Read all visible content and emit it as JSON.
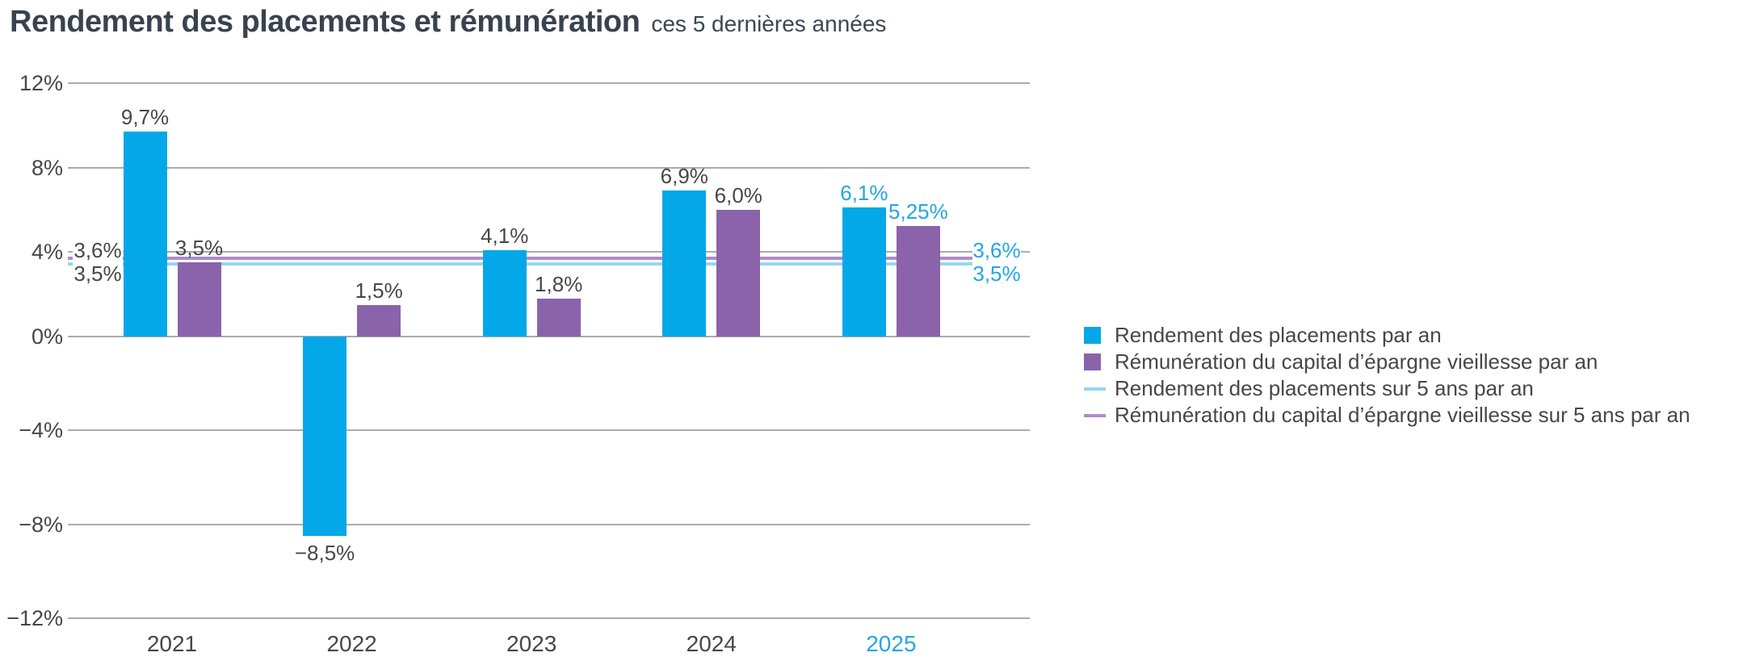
{
  "header": {
    "title": "Rendement des placements et rémunération",
    "subtitle": "ces 5 dernières années"
  },
  "colors": {
    "bar_blue": "#04A8E8",
    "bar_purple": "#8A63AA",
    "line_blue": "#97D5F3",
    "line_purple": "#AC8CC9",
    "accent_text_blue": "#23A6E1",
    "text_dark": "#474747",
    "title_dark": "#39434F",
    "grid_gray": "#ABABAB"
  },
  "chart_data": {
    "type": "bar",
    "title": "Rendement des placements et rémunération",
    "subtitle": "ces 5 dernières années",
    "categories": [
      "2021",
      "2022",
      "2023",
      "2024",
      "2025"
    ],
    "highlight_category": "2025",
    "series": [
      {
        "name": "Rendement des placements par an",
        "color_key": "bar_blue",
        "values": [
          9.7,
          -8.5,
          4.1,
          6.9,
          6.1
        ],
        "labels": [
          "9,7%",
          "−8,5%",
          "4,1%",
          "6,9%",
          "6,1%"
        ]
      },
      {
        "name": "Rémunération du capital d’épargne vieillesse par an",
        "color_key": "bar_purple",
        "values": [
          3.5,
          1.5,
          1.8,
          6.0,
          5.25
        ],
        "labels": [
          "3,5%",
          "1,5%",
          "1,8%",
          "6,0%",
          "5,25%"
        ]
      }
    ],
    "reference_lines": [
      {
        "name": "Rendement des placements sur 5 ans par an",
        "value": 3.5,
        "label": "3,5%",
        "color_key": "line_blue"
      },
      {
        "name": "Rémunération du capital d’épargne vieillesse sur 5 ans par an",
        "value": 3.6,
        "label": "3,6%",
        "color_key": "line_purple"
      }
    ],
    "y_ticks": [
      {
        "v": 12,
        "label": "12%"
      },
      {
        "v": 8,
        "label": "8%"
      },
      {
        "v": 4,
        "label": "4%"
      },
      {
        "v": 0,
        "label": "0%"
      },
      {
        "v": -4,
        "label": "−4%"
      },
      {
        "v": -8,
        "label": "−8%"
      },
      {
        "v": -12,
        "label": "−12%"
      }
    ],
    "ylim": [
      -12,
      12
    ],
    "grid": true,
    "legend_position": "right"
  }
}
